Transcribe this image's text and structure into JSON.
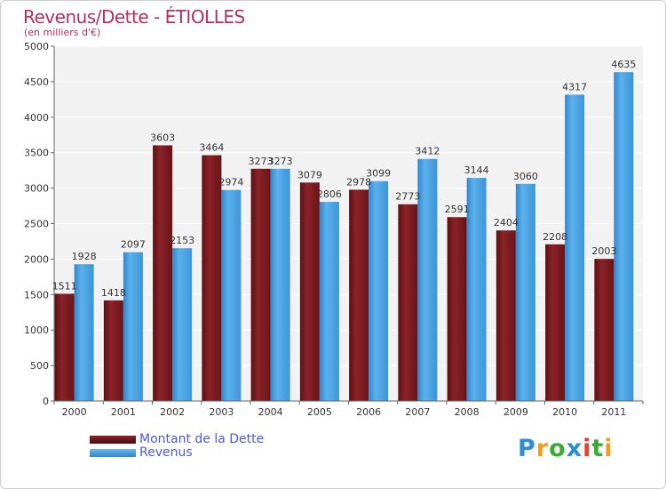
{
  "header": {
    "title": "Revenus/Dette - ÉTIOLLES",
    "subtitle": "(en milliers d'€)"
  },
  "legend": {
    "items": [
      {
        "label": "Montant de la Dette",
        "color": "#7a1a1f"
      },
      {
        "label": "Revenus",
        "color": "#4aa3e2"
      }
    ]
  },
  "logo": {
    "text": "Proxiti",
    "letters": [
      {
        "ch": "P",
        "color": "#2a8fd6"
      },
      {
        "ch": "r",
        "color": "#f29c1f"
      },
      {
        "ch": "o",
        "color": "#3aaa35"
      },
      {
        "ch": "x",
        "color": "#2a8fd6"
      },
      {
        "ch": "i",
        "color": "#e8402d"
      },
      {
        "ch": "t",
        "color": "#3aaa35"
      },
      {
        "ch": "i",
        "color": "#f29c1f"
      }
    ]
  },
  "chart_data": {
    "type": "bar",
    "title": "Revenus/Dette - ÉTIOLLES",
    "ylabel": "(en milliers d'€)",
    "xlabel": "",
    "ylim": [
      0,
      5000
    ],
    "yticks": [
      0,
      500,
      1000,
      1500,
      2000,
      2500,
      3000,
      3500,
      4000,
      4500,
      5000
    ],
    "grid": true,
    "categories": [
      "2000",
      "2001",
      "2002",
      "2003",
      "2004",
      "2005",
      "2006",
      "2007",
      "2008",
      "2009",
      "2010",
      "2011"
    ],
    "series": [
      {
        "name": "Montant de la Dette",
        "color": "#7a1a1f",
        "values": [
          1511,
          1418,
          3603,
          3464,
          3273,
          3079,
          2978,
          2773,
          2591,
          2404,
          2208,
          2003
        ],
        "labels": [
          "1511",
          "1418",
          "3603",
          "3464",
          "3273",
          "3079",
          "2978",
          "2773",
          "2591",
          "2404",
          "2208",
          "2003"
        ]
      },
      {
        "name": "Revenus",
        "color": "#4aa3e2",
        "values": [
          1928,
          2097,
          2153,
          2974,
          3273,
          2806,
          3099,
          3412,
          3144,
          3060,
          4317,
          4635
        ],
        "labels": [
          "1928",
          "2097",
          "2153",
          "2974",
          "3273",
          "2806",
          "3099",
          "3412",
          "3144",
          "3060",
          "4317",
          "4635"
        ]
      }
    ]
  }
}
